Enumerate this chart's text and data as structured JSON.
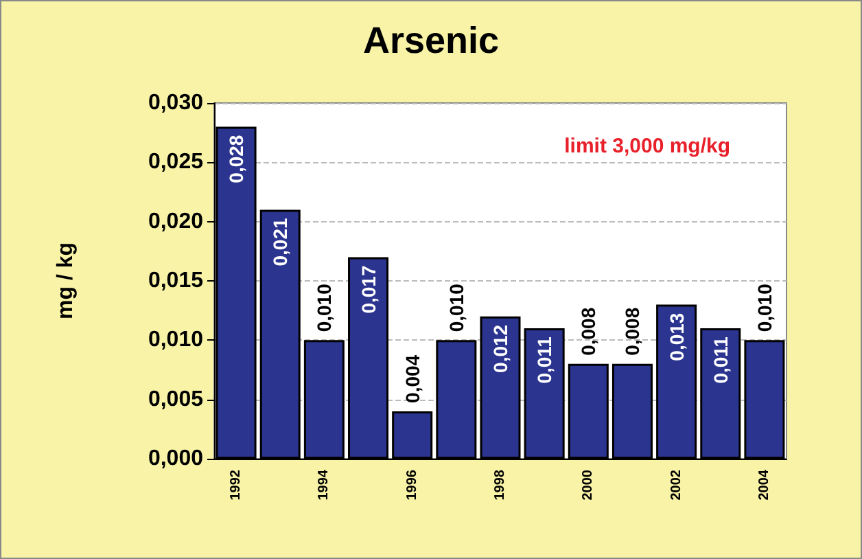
{
  "chart_data": {
    "type": "bar",
    "title": "Arsenic",
    "ylabel": "mg / kg",
    "annotations": [
      "limit 3,000 mg/kg"
    ],
    "categories": [
      "1992",
      null,
      "1994",
      null,
      "1996",
      null,
      "1998",
      null,
      "2000",
      null,
      "2002",
      null,
      "2004"
    ],
    "values": [
      0.028,
      0.021,
      0.01,
      0.017,
      0.004,
      0.01,
      0.012,
      0.011,
      0.008,
      0.008,
      0.013,
      0.011,
      0.01
    ],
    "value_labels": [
      "0,028",
      "0,021",
      "0,010",
      "0,017",
      "0,004",
      "0,010",
      "0,012",
      "0,011",
      "0,008",
      "0,008",
      "0,013",
      "0,011",
      "0,010"
    ],
    "color": "#2b3590",
    "ylim": [
      0,
      0.03
    ],
    "yticks": [
      {
        "value": 0,
        "label": "0,000"
      },
      {
        "value": 0.005,
        "label": "0,005"
      },
      {
        "value": 0.01,
        "label": "0,010"
      },
      {
        "value": 0.015,
        "label": "0,015"
      },
      {
        "value": 0.02,
        "label": "0,020"
      },
      {
        "value": 0.025,
        "label": "0,025"
      },
      {
        "value": 0.03,
        "label": "0,030"
      }
    ],
    "grid": "y"
  }
}
